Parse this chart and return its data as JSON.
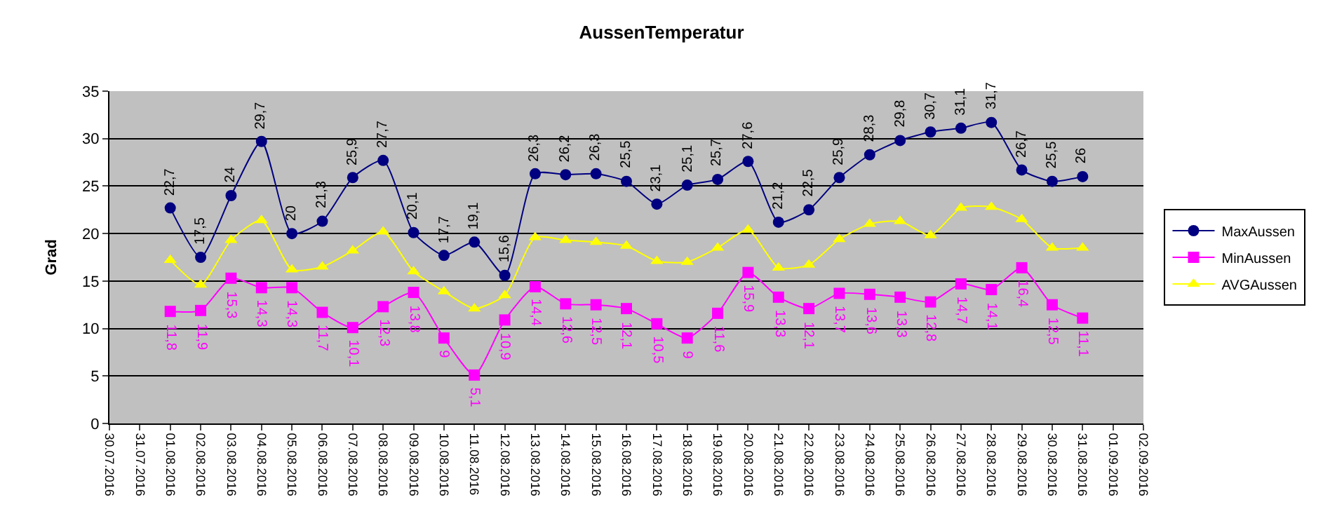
{
  "chart_data": {
    "type": "line",
    "title": "AussenTemperatur",
    "ylabel": "Grad",
    "x": [
      "2016-08-01",
      "2016-08-02",
      "2016-08-03",
      "2016-08-04",
      "2016-08-05",
      "2016-08-06",
      "2016-08-07",
      "2016-08-08",
      "2016-08-09",
      "2016-08-10",
      "2016-08-11",
      "2016-08-12",
      "2016-08-13",
      "2016-08-14",
      "2016-08-15",
      "2016-08-16",
      "2016-08-17",
      "2016-08-18",
      "2016-08-19",
      "2016-08-20",
      "2016-08-21",
      "2016-08-22",
      "2016-08-23",
      "2016-08-24",
      "2016-08-25",
      "2016-08-26",
      "2016-08-27",
      "2016-08-28",
      "2016-08-29",
      "2016-08-30",
      "2016-08-31"
    ],
    "series": [
      {
        "name": "MaxAussen",
        "color": "#000080",
        "marker": "circle",
        "values": [
          22.7,
          17.5,
          24,
          29.7,
          20,
          21.3,
          25.9,
          27.7,
          20.1,
          17.7,
          19.1,
          15.6,
          26.3,
          26.2,
          26.3,
          25.5,
          23.1,
          25.1,
          25.7,
          27.6,
          21.2,
          22.5,
          25.9,
          28.3,
          29.8,
          30.7,
          31.1,
          31.7,
          26.7,
          25.5,
          26
        ],
        "value_labels": [
          "22,7",
          "17,5",
          "24",
          "29,7",
          "20",
          "21,3",
          "25,9",
          "27,7",
          "20,1",
          "17,7",
          "19,1",
          "15,6",
          "26,3",
          "26,2",
          "26,3",
          "25,5",
          "23,1",
          "25,1",
          "25,7",
          "27,6",
          "21,2",
          "22,5",
          "25,9",
          "28,3",
          "29,8",
          "30,7",
          "31,1",
          "31,7",
          "26,7",
          "25,5",
          "26"
        ]
      },
      {
        "name": "MinAussen",
        "color": "#ff00ff",
        "marker": "square",
        "values": [
          11.8,
          11.9,
          15.3,
          14.3,
          14.3,
          11.7,
          10.1,
          12.3,
          13.8,
          9,
          5.1,
          10.9,
          14.4,
          12.6,
          12.5,
          12.1,
          10.5,
          9,
          11.6,
          15.9,
          13.3,
          12.1,
          13.7,
          13.6,
          13.3,
          12.8,
          14.7,
          14.1,
          16.4,
          12.5,
          11.1
        ],
        "value_labels": [
          "11,8",
          "11,9",
          "15,3",
          "14,3",
          "14,3",
          "11,7",
          "10,1",
          "12,3",
          "13,8",
          "9",
          "5,1",
          "10,9",
          "14,4",
          "12,6",
          "12,5",
          "12,1",
          "10,5",
          "9",
          "11,6",
          "15,9",
          "13,3",
          "12,1",
          "13,7",
          "13,6",
          "13,3",
          "12,8",
          "14,7",
          "14,1",
          "16,4",
          "12,5",
          "11,1"
        ]
      },
      {
        "name": "AVGAussen",
        "color": "#ffff00",
        "marker": "triangle",
        "values": [
          17.2,
          14.6,
          19.3,
          21.4,
          16.2,
          16.5,
          18.2,
          20.2,
          16,
          13.9,
          12.1,
          13.5,
          19.6,
          19.3,
          19.1,
          18.7,
          17.1,
          17,
          18.5,
          20.4,
          16.4,
          16.7,
          19.4,
          21,
          21.3,
          19.8,
          22.7,
          22.8,
          21.5,
          18.5,
          18.5
        ]
      }
    ],
    "xlim": [
      "2016-07-30",
      "2016-09-02"
    ],
    "xticks": [
      {
        "value": "2016-07-30",
        "label": "30.07.2016"
      },
      {
        "value": "2016-07-31",
        "label": "31.07.2016"
      },
      {
        "value": "2016-08-01",
        "label": "01.08.2016"
      },
      {
        "value": "2016-08-02",
        "label": "02.08.2016"
      },
      {
        "value": "2016-08-03",
        "label": "03.08.2016"
      },
      {
        "value": "2016-08-04",
        "label": "04.08.2016"
      },
      {
        "value": "2016-08-05",
        "label": "05.08.2016"
      },
      {
        "value": "2016-08-06",
        "label": "06.08.2016"
      },
      {
        "value": "2016-08-07",
        "label": "07.08.2016"
      },
      {
        "value": "2016-08-08",
        "label": "08.08.2016"
      },
      {
        "value": "2016-08-09",
        "label": "09.08.2016"
      },
      {
        "value": "2016-08-10",
        "label": "10.08.2016"
      },
      {
        "value": "2016-08-11",
        "label": "11.08.2016"
      },
      {
        "value": "2016-08-12",
        "label": "12.08.2016"
      },
      {
        "value": "2016-08-13",
        "label": "13.08.2016"
      },
      {
        "value": "2016-08-14",
        "label": "14.08.2016"
      },
      {
        "value": "2016-08-15",
        "label": "15.08.2016"
      },
      {
        "value": "2016-08-16",
        "label": "16.08.2016"
      },
      {
        "value": "2016-08-17",
        "label": "17.08.2016"
      },
      {
        "value": "2016-08-18",
        "label": "18.08.2016"
      },
      {
        "value": "2016-08-19",
        "label": "19.08.2016"
      },
      {
        "value": "2016-08-20",
        "label": "20.08.2016"
      },
      {
        "value": "2016-08-21",
        "label": "21.08.2016"
      },
      {
        "value": "2016-08-22",
        "label": "22.08.2016"
      },
      {
        "value": "2016-08-23",
        "label": "23.08.2016"
      },
      {
        "value": "2016-08-24",
        "label": "24.08.2016"
      },
      {
        "value": "2016-08-25",
        "label": "25.08.2016"
      },
      {
        "value": "2016-08-26",
        "label": "26.08.2016"
      },
      {
        "value": "2016-08-27",
        "label": "27.08.2016"
      },
      {
        "value": "2016-08-28",
        "label": "28.08.2016"
      },
      {
        "value": "2016-08-29",
        "label": "29.08.2016"
      },
      {
        "value": "2016-08-30",
        "label": "30.08.2016"
      },
      {
        "value": "2016-08-31",
        "label": "31.08.2016"
      },
      {
        "value": "2016-09-01",
        "label": "01.09.2016"
      },
      {
        "value": "2016-09-02",
        "label": "02.09.2016"
      }
    ],
    "ylim": [
      0,
      35
    ],
    "yticks": [
      0,
      5,
      10,
      15,
      20,
      25,
      30,
      35
    ],
    "grid": "y",
    "legend": "right"
  }
}
